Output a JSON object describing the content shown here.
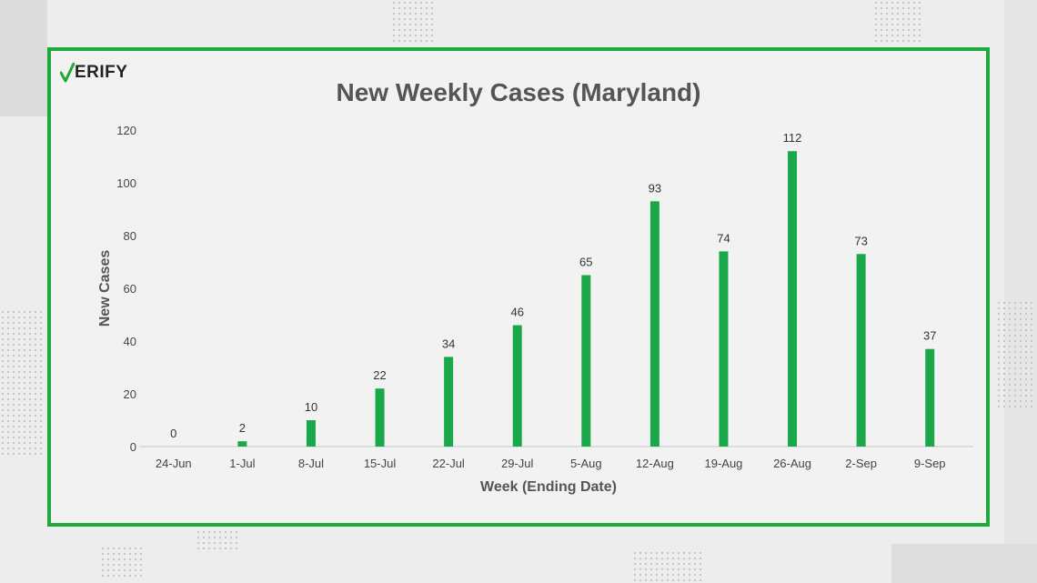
{
  "brand": {
    "logo_text": "ERIFY"
  },
  "colors": {
    "accent": "#1fa83c",
    "bar": "#1aa84b"
  },
  "chart_data": {
    "type": "bar",
    "title": "New Weekly Cases (Maryland)",
    "xlabel": "Week (Ending Date)",
    "ylabel": "New Cases",
    "categories": [
      "24-Jun",
      "1-Jul",
      "8-Jul",
      "15-Jul",
      "22-Jul",
      "29-Jul",
      "5-Aug",
      "12-Aug",
      "19-Aug",
      "26-Aug",
      "2-Sep",
      "9-Sep"
    ],
    "values": [
      0,
      2,
      10,
      22,
      34,
      46,
      65,
      93,
      74,
      112,
      73,
      37
    ],
    "ylim": [
      0,
      120
    ],
    "yticks": [
      0,
      20,
      40,
      60,
      80,
      100,
      120
    ],
    "data_labels": true,
    "grid": false,
    "legend": "none"
  }
}
